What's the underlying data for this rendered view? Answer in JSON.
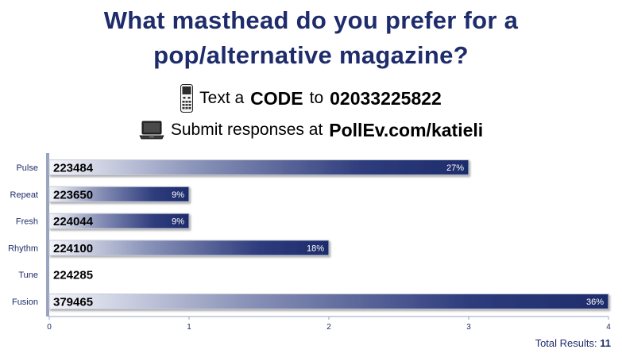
{
  "title": {
    "line1": "What masthead do you prefer for a",
    "line2": "pop/alternative magazine?"
  },
  "instructions": {
    "text_prefix": "Text a",
    "code_label": "CODE",
    "to_label": "to",
    "phone_number": "02033225822",
    "submit_text": "Submit responses at",
    "url": "PollEv.com/katieli",
    "phone_icon": "phone-icon",
    "laptop_icon": "laptop-icon"
  },
  "chart_data": {
    "type": "bar",
    "orientation": "horizontal",
    "categories": [
      "Pulse",
      "Repeat",
      "Fresh",
      "Rhythm",
      "Tune",
      "Fusion"
    ],
    "codes": [
      "223484",
      "223650",
      "224044",
      "224100",
      "224285",
      "379465"
    ],
    "values": [
      3,
      1,
      1,
      2,
      0,
      4
    ],
    "percent_labels": [
      "27%",
      "9%",
      "9%",
      "18%",
      "",
      "36%"
    ],
    "xlim": [
      0,
      4
    ],
    "xticks": [
      "0",
      "1",
      "2",
      "3",
      "4"
    ],
    "grid": false,
    "bar_color": "#1e2c6b"
  },
  "footer": {
    "total_label": "Total Results:",
    "total_value": "11"
  },
  "colors": {
    "title": "#1e2c6b",
    "axis": "#9aa3c0",
    "bar_dark": "#1e2c6b",
    "bar_light": "#f3f4fa"
  }
}
